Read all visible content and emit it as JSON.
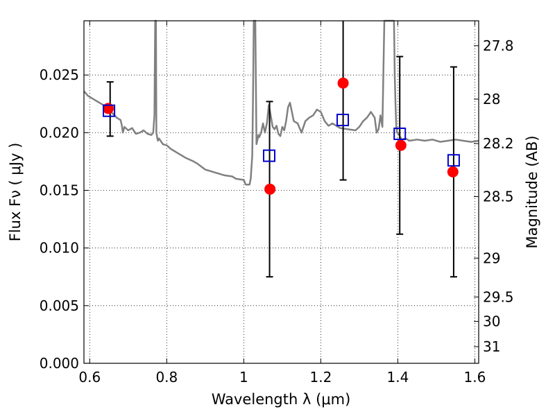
{
  "chart_data": {
    "type": "scatter",
    "xlabel": "Wavelength  λ (μm)",
    "ylabel": "Flux  Fν  ( μJy )",
    "y2label": "Magnitude (AB)",
    "xlim": [
      0.585,
      1.61
    ],
    "ylim": [
      0.0,
      0.0297
    ],
    "grid": true,
    "x_ticks": [
      {
        "value": 0.6,
        "label": "0.6"
      },
      {
        "value": 0.8,
        "label": "0.8"
      },
      {
        "value": 1.0,
        "label": "1"
      },
      {
        "value": 1.2,
        "label": "1.2"
      },
      {
        "value": 1.4,
        "label": "1.4"
      },
      {
        "value": 1.6,
        "label": "1.6"
      }
    ],
    "y_ticks": [
      {
        "value": 0.0,
        "label": "0.000"
      },
      {
        "value": 0.005,
        "label": "0.005"
      },
      {
        "value": 0.01,
        "label": "0.010"
      },
      {
        "value": 0.015,
        "label": "0.015"
      },
      {
        "value": 0.02,
        "label": "0.020"
      },
      {
        "value": 0.025,
        "label": "0.025"
      }
    ],
    "y2_ticks": [
      {
        "value": 27.8,
        "label": "27.8"
      },
      {
        "value": 28.0,
        "label": "28"
      },
      {
        "value": 28.2,
        "label": "28.2"
      },
      {
        "value": 28.5,
        "label": "28.5"
      },
      {
        "value": 29.0,
        "label": "29"
      },
      {
        "value": 29.5,
        "label": "29.5"
      },
      {
        "value": 30.0,
        "label": "30"
      },
      {
        "value": 31.0,
        "label": "31"
      }
    ],
    "series": [
      {
        "kind": "model-spectrum",
        "color": "#808080",
        "x": [
          0.585,
          0.595,
          0.605,
          0.615,
          0.625,
          0.635,
          0.645,
          0.655,
          0.665,
          0.67,
          0.675,
          0.68,
          0.683,
          0.686,
          0.69,
          0.7,
          0.71,
          0.72,
          0.73,
          0.74,
          0.75,
          0.76,
          0.765,
          0.768,
          0.77,
          0.772,
          0.773,
          0.775,
          0.777,
          0.78,
          0.79,
          0.8,
          0.81,
          0.82,
          0.83,
          0.85,
          0.87,
          0.88,
          0.9,
          0.92,
          0.93,
          0.95,
          0.97,
          0.98,
          1.0,
          1.005,
          1.01,
          1.015,
          1.018,
          1.022,
          1.024,
          1.026,
          1.028,
          1.03,
          1.033,
          1.035,
          1.038,
          1.04,
          1.045,
          1.05,
          1.055,
          1.06,
          1.065,
          1.07,
          1.075,
          1.08,
          1.085,
          1.09,
          1.095,
          1.1,
          1.105,
          1.11,
          1.115,
          1.12,
          1.13,
          1.14,
          1.15,
          1.16,
          1.17,
          1.18,
          1.19,
          1.2,
          1.21,
          1.22,
          1.23,
          1.25,
          1.27,
          1.29,
          1.3,
          1.31,
          1.32,
          1.33,
          1.34,
          1.345,
          1.35,
          1.355,
          1.36,
          1.365,
          1.37,
          1.375,
          1.38,
          1.385,
          1.39,
          1.392,
          1.394,
          1.396,
          1.398,
          1.4,
          1.41,
          1.42,
          1.43,
          1.45,
          1.47,
          1.49,
          1.51,
          1.53,
          1.55,
          1.57,
          1.59,
          1.61
        ],
        "y": [
          0.0236,
          0.0232,
          0.023,
          0.0228,
          0.0226,
          0.0224,
          0.0223,
          0.0218,
          0.0215,
          0.0213,
          0.0212,
          0.0211,
          0.0207,
          0.02,
          0.0205,
          0.0202,
          0.0204,
          0.0199,
          0.02,
          0.0202,
          0.0199,
          0.0198,
          0.02,
          0.0215,
          0.0297,
          0.0297,
          0.02,
          0.0196,
          0.0193,
          0.0195,
          0.019,
          0.0189,
          0.0186,
          0.0184,
          0.0182,
          0.0178,
          0.0175,
          0.0173,
          0.0168,
          0.0166,
          0.0165,
          0.0163,
          0.0162,
          0.016,
          0.0159,
          0.0155,
          0.0155,
          0.0155,
          0.016,
          0.018,
          0.023,
          0.0297,
          0.0297,
          0.0297,
          0.019,
          0.0193,
          0.0198,
          0.0196,
          0.02,
          0.0208,
          0.02,
          0.0208,
          0.0224,
          0.0215,
          0.0205,
          0.0203,
          0.0206,
          0.0199,
          0.0197,
          0.0205,
          0.0202,
          0.021,
          0.0222,
          0.0226,
          0.021,
          0.0208,
          0.02,
          0.021,
          0.0213,
          0.0215,
          0.022,
          0.0218,
          0.021,
          0.0206,
          0.0208,
          0.0204,
          0.0203,
          0.0202,
          0.0205,
          0.021,
          0.0213,
          0.0218,
          0.0213,
          0.02,
          0.0203,
          0.0215,
          0.0205,
          0.0297,
          0.0297,
          0.0297,
          0.0297,
          0.0297,
          0.0297,
          0.025,
          0.0225,
          0.0205,
          0.02,
          0.02,
          0.0194,
          0.0195,
          0.0193,
          0.0194,
          0.0193,
          0.0194,
          0.0192,
          0.0193,
          0.0194,
          0.0193,
          0.0192,
          0.0193
        ]
      },
      {
        "kind": "observed",
        "marker": "circle",
        "color": "#ff0000",
        "points": [
          {
            "x": 0.648,
            "y": 0.0221
          },
          {
            "x": 1.068,
            "y": 0.0151
          },
          {
            "x": 1.258,
            "y": 0.0243
          },
          {
            "x": 1.408,
            "y": 0.0189
          },
          {
            "x": 1.543,
            "y": 0.0166
          }
        ]
      },
      {
        "kind": "errorbars",
        "color": "#000000",
        "bars": [
          {
            "x": 0.653,
            "low": 0.0197,
            "high": 0.0244
          },
          {
            "x": 1.067,
            "low": 0.0075,
            "high": 0.0227
          },
          {
            "x": 1.258,
            "low": 0.0159,
            "high": 0.0297
          },
          {
            "x": 1.405,
            "low": 0.0112,
            "high": 0.0266
          },
          {
            "x": 1.545,
            "low": 0.0075,
            "high": 0.0257
          }
        ]
      },
      {
        "kind": "model-photometry",
        "marker": "open-square",
        "color": "#0000cc",
        "points": [
          {
            "x": 0.65,
            "y": 0.0219
          },
          {
            "x": 1.066,
            "y": 0.018
          },
          {
            "x": 1.257,
            "y": 0.0211
          },
          {
            "x": 1.405,
            "y": 0.0199
          },
          {
            "x": 1.545,
            "y": 0.0176
          }
        ]
      }
    ]
  }
}
